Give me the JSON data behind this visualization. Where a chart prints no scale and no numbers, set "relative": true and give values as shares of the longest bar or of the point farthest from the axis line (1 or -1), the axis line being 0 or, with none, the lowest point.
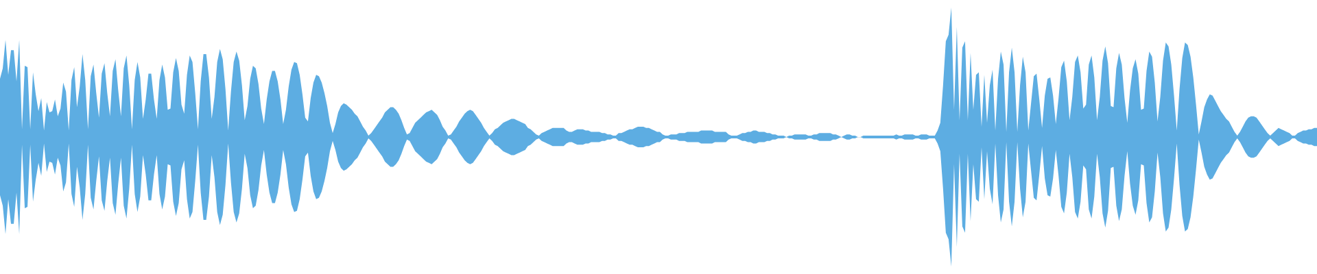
{
  "chart_data": {
    "type": "area",
    "relative": true,
    "categories": [
      null,
      null,
      null,
      null,
      null,
      null,
      null,
      null,
      null,
      null,
      null,
      null,
      null,
      null,
      null,
      null,
      null,
      null,
      null,
      null,
      null,
      null,
      null,
      null,
      null,
      null,
      null,
      null,
      null,
      null,
      null,
      null,
      null,
      null,
      null,
      null,
      null,
      null,
      null,
      null,
      null,
      null,
      null,
      null,
      null,
      null,
      null,
      null,
      null,
      null,
      null,
      null,
      null,
      null,
      null,
      null,
      null,
      null,
      null,
      null,
      null,
      null,
      null,
      null,
      null,
      null,
      null,
      null,
      null,
      null,
      null,
      null,
      null,
      null,
      null,
      null,
      null,
      null,
      null,
      null,
      null,
      null,
      null,
      null,
      null,
      null,
      null,
      null,
      null,
      null,
      null,
      null,
      null,
      null,
      null,
      null,
      null,
      null,
      null,
      null,
      null,
      null,
      null,
      null,
      null,
      null,
      null,
      null,
      null,
      null,
      null,
      null,
      null,
      null,
      null,
      null,
      null,
      null,
      null,
      null,
      null,
      null,
      null,
      null,
      null,
      null,
      null,
      null,
      null,
      null,
      null,
      null,
      null,
      null,
      null,
      null,
      null,
      null,
      null,
      null,
      null,
      null,
      null,
      null,
      null,
      null,
      null,
      null,
      null,
      null,
      null,
      null,
      null,
      null,
      null,
      null,
      null,
      null,
      null,
      null,
      null,
      null,
      null,
      null,
      null,
      null,
      null,
      null,
      null,
      null,
      null,
      null,
      null,
      null,
      null,
      null,
      null,
      null,
      null,
      null,
      null,
      null,
      null,
      null,
      null,
      null,
      null,
      null,
      null,
      null,
      null,
      null,
      null,
      null,
      null,
      null,
      null,
      null,
      null,
      null,
      null,
      null,
      null,
      null,
      null,
      null,
      null,
      null,
      null,
      null,
      null,
      null,
      null,
      null,
      null,
      null,
      null,
      null,
      null,
      null,
      null,
      null,
      null,
      null,
      null,
      null,
      null,
      null,
      null,
      null,
      null,
      null,
      null,
      null,
      null,
      null,
      null,
      null,
      null,
      null,
      null,
      null,
      null,
      null,
      null,
      null,
      null,
      null,
      null,
      null,
      null,
      null,
      null,
      null,
      null,
      null,
      null,
      null,
      null,
      null,
      null,
      null,
      null,
      null,
      null,
      null,
      null,
      null,
      null,
      null,
      null,
      null,
      null,
      null,
      null,
      null,
      null,
      null,
      null,
      null,
      null,
      null,
      null,
      null,
      null,
      null,
      null,
      null,
      null,
      null,
      null,
      null,
      null,
      null,
      null,
      null,
      null,
      null,
      null,
      null,
      null,
      null,
      null,
      null,
      null,
      null,
      null,
      null,
      null,
      null,
      null,
      null,
      null,
      null,
      null,
      null,
      null,
      null,
      null,
      null,
      null,
      null,
      null,
      null,
      null,
      null,
      null,
      null,
      null,
      null,
      null,
      null,
      null,
      null,
      null,
      null,
      null,
      null,
      null,
      null,
      null,
      null,
      null,
      null,
      null,
      null,
      null,
      null,
      null,
      null,
      null,
      null,
      null,
      null,
      null,
      null,
      null,
      null,
      null,
      null,
      null,
      null,
      null,
      null,
      null,
      null,
      null,
      null,
      null,
      null,
      null,
      null,
      null,
      null,
      null,
      null,
      null,
      null,
      null,
      null,
      null,
      null,
      null,
      null,
      null,
      null,
      null,
      null,
      null,
      null,
      null,
      null,
      null,
      null,
      null,
      null,
      null,
      null,
      null,
      null,
      null,
      null,
      null,
      null,
      null,
      null,
      null,
      null,
      null,
      null,
      null,
      null,
      null,
      null,
      null,
      null,
      null,
      null,
      null,
      null,
      null,
      null,
      null,
      null,
      null,
      null,
      null,
      null,
      null,
      null,
      null,
      null,
      null,
      null,
      null,
      null,
      null,
      null,
      null,
      null,
      null,
      null,
      null,
      null,
      null,
      null,
      null,
      null,
      null,
      null,
      null,
      null,
      null,
      null,
      null,
      null,
      null,
      null,
      null,
      null,
      null,
      null,
      null,
      null,
      null,
      null,
      null,
      null,
      null,
      null,
      null,
      null,
      null,
      null,
      null,
      null,
      null,
      null,
      null,
      null
    ],
    "series": [
      {
        "color": "#5dade2",
        "values": [
          0.45,
          0.53,
          0.75,
          0.48,
          0.67,
          0.67,
          0.43,
          0.75,
          0.06,
          0.55,
          0.54,
          0.06,
          0.5,
          0.33,
          0.2,
          0.3,
          0.05,
          0.27,
          0.19,
          0.2,
          0.29,
          0.16,
          0.22,
          0.42,
          0.35,
          0.05,
          0.44,
          0.54,
          0.23,
          0.39,
          0.64,
          0.44,
          0.06,
          0.47,
          0.56,
          0.34,
          0.15,
          0.49,
          0.57,
          0.34,
          0.16,
          0.51,
          0.6,
          0.36,
          0.16,
          0.53,
          0.63,
          0.4,
          0.06,
          0.44,
          0.58,
          0.46,
          0.14,
          0.29,
          0.49,
          0.49,
          0.29,
          0.14,
          0.44,
          0.56,
          0.46,
          0.21,
          0.22,
          0.5,
          0.61,
          0.51,
          0.25,
          0.18,
          0.48,
          0.63,
          0.58,
          0.34,
          0.06,
          0.43,
          0.64,
          0.64,
          0.46,
          0.14,
          0.31,
          0.58,
          0.68,
          0.6,
          0.37,
          0.05,
          0.35,
          0.58,
          0.66,
          0.59,
          0.4,
          0.13,
          0.24,
          0.45,
          0.55,
          0.53,
          0.41,
          0.22,
          0.1,
          0.29,
          0.43,
          0.51,
          0.51,
          0.43,
          0.29,
          0.1,
          0.21,
          0.39,
          0.52,
          0.58,
          0.57,
          0.48,
          0.33,
          0.15,
          0.12,
          0.3,
          0.42,
          0.48,
          0.47,
          0.42,
          0.34,
          0.24,
          0.11,
          0.03,
          0.1,
          0.19,
          0.24,
          0.26,
          0.25,
          0.23,
          0.21,
          0.18,
          0.16,
          0.12,
          0.08,
          0.05,
          0.01,
          0.03,
          0.06,
          0.09,
          0.12,
          0.15,
          0.19,
          0.21,
          0.23,
          0.23,
          0.21,
          0.18,
          0.13,
          0.07,
          0.02,
          0.03,
          0.07,
          0.11,
          0.13,
          0.15,
          0.17,
          0.19,
          0.2,
          0.21,
          0.19,
          0.17,
          0.13,
          0.08,
          0.05,
          0.01,
          0.02,
          0.05,
          0.08,
          0.12,
          0.15,
          0.18,
          0.2,
          0.21,
          0.2,
          0.17,
          0.14,
          0.11,
          0.07,
          0.04,
          0.01,
          0.03,
          0.06,
          0.07,
          0.09,
          0.11,
          0.12,
          0.13,
          0.14,
          0.14,
          0.13,
          0.12,
          0.11,
          0.1,
          0.07,
          0.06,
          0.04,
          0.02,
          0.01,
          0.03,
          0.04,
          0.05,
          0.06,
          0.07,
          0.07,
          0.07,
          0.07,
          0.07,
          0.05,
          0.04,
          0.04,
          0.05,
          0.06,
          0.06,
          0.06,
          0.05,
          0.05,
          0.04,
          0.04,
          0.04,
          0.04,
          0.03,
          0.03,
          0.02,
          0.02,
          0.01,
          0.01,
          0.03,
          0.03,
          0.04,
          0.05,
          0.06,
          0.06,
          0.07,
          0.08,
          0.08,
          0.08,
          0.07,
          0.07,
          0.06,
          0.05,
          0.04,
          0.04,
          0.02,
          0.01,
          0.01,
          0.02,
          0.02,
          0.02,
          0.03,
          0.03,
          0.03,
          0.04,
          0.04,
          0.04,
          0.04,
          0.04,
          0.05,
          0.05,
          0.05,
          0.05,
          0.05,
          0.04,
          0.04,
          0.04,
          0.04,
          0.04,
          0.02,
          0.01,
          0.01,
          0.01,
          0.02,
          0.03,
          0.03,
          0.04,
          0.04,
          0.05,
          0.05,
          0.04,
          0.04,
          0.04,
          0.03,
          0.03,
          0.02,
          0.02,
          0.01,
          0.01,
          0.01,
          0,
          0.01,
          0.01,
          0.02,
          0.02,
          0.02,
          0.02,
          0.02,
          0.01,
          0.01,
          0.02,
          0.02,
          0.03,
          0.03,
          0.03,
          0.03,
          0.03,
          0.02,
          0.02,
          0.01,
          0,
          0.01,
          0.02,
          0.02,
          0.01,
          0.01,
          0,
          0,
          0.01,
          0.01,
          0.01,
          0.01,
          0.01,
          0.01,
          0.01,
          0.01,
          0.01,
          0.01,
          0.01,
          0.01,
          0.02,
          0.01,
          0.01,
          0.02,
          0.02,
          0.02,
          0.02,
          0.01,
          0.01,
          0.02,
          0.02,
          0.02,
          0.01,
          0.01,
          0.01,
          0.05,
          0.11,
          0.4,
          0.74,
          0.79,
          1,
          0.21,
          0.85,
          0.13,
          0.69,
          0.74,
          0.13,
          0.65,
          0.21,
          0.48,
          0.5,
          0.08,
          0.48,
          0.11,
          0.4,
          0.52,
          0.05,
          0.45,
          0.66,
          0.56,
          0.04,
          0.5,
          0.69,
          0.5,
          0.04,
          0.4,
          0.62,
          0.5,
          0.05,
          0.26,
          0.47,
          0.49,
          0.29,
          0.07,
          0.32,
          0.45,
          0.46,
          0.32,
          0.1,
          0.3,
          0.54,
          0.59,
          0.43,
          0.13,
          0.31,
          0.58,
          0.63,
          0.5,
          0.22,
          0.25,
          0.56,
          0.63,
          0.46,
          0.13,
          0.31,
          0.59,
          0.7,
          0.57,
          0.24,
          0.23,
          0.53,
          0.65,
          0.56,
          0.3,
          0.11,
          0.36,
          0.53,
          0.6,
          0.49,
          0.21,
          0.22,
          0.51,
          0.66,
          0.62,
          0.42,
          0.12,
          0.31,
          0.59,
          0.73,
          0.7,
          0.56,
          0.32,
          0.05,
          0.37,
          0.61,
          0.73,
          0.71,
          0.62,
          0.46,
          0.25,
          0.02,
          0.12,
          0.23,
          0.29,
          0.33,
          0.32,
          0.28,
          0.24,
          0.2,
          0.17,
          0.14,
          0.12,
          0.08,
          0.04,
          0.01,
          0.04,
          0.08,
          0.12,
          0.15,
          0.16,
          0.16,
          0.15,
          0.12,
          0.09,
          0.06,
          0.03,
          0.01,
          0.03,
          0.05,
          0.07,
          0.06,
          0.05,
          0.04,
          0.03,
          0.01,
          0.01,
          0.03,
          0.04,
          0.05,
          0.05,
          0.06,
          0.06,
          0.07,
          0.07
        ]
      },
      {
        "color": "#5dade2",
        "values": [
          -0.45,
          -0.53,
          -0.75,
          -0.48,
          -0.67,
          -0.67,
          -0.43,
          -0.75,
          -0.06,
          -0.55,
          -0.54,
          -0.06,
          -0.5,
          -0.33,
          -0.2,
          -0.3,
          -0.05,
          -0.27,
          -0.19,
          -0.2,
          -0.29,
          -0.16,
          -0.22,
          -0.42,
          -0.35,
          -0.05,
          -0.44,
          -0.54,
          -0.23,
          -0.39,
          -0.64,
          -0.44,
          -0.06,
          -0.47,
          -0.56,
          -0.34,
          -0.15,
          -0.49,
          -0.57,
          -0.34,
          -0.16,
          -0.51,
          -0.6,
          -0.36,
          -0.16,
          -0.53,
          -0.63,
          -0.4,
          -0.06,
          -0.44,
          -0.58,
          -0.46,
          -0.14,
          -0.29,
          -0.49,
          -0.49,
          -0.29,
          -0.14,
          -0.44,
          -0.56,
          -0.46,
          -0.21,
          -0.22,
          -0.5,
          -0.61,
          -0.51,
          -0.25,
          -0.18,
          -0.48,
          -0.63,
          -0.58,
          -0.34,
          -0.06,
          -0.43,
          -0.64,
          -0.64,
          -0.46,
          -0.14,
          -0.31,
          -0.58,
          -0.68,
          -0.6,
          -0.37,
          -0.05,
          -0.35,
          -0.58,
          -0.66,
          -0.59,
          -0.4,
          -0.13,
          -0.24,
          -0.45,
          -0.55,
          -0.53,
          -0.41,
          -0.22,
          -0.1,
          -0.29,
          -0.43,
          -0.51,
          -0.51,
          -0.43,
          -0.29,
          -0.1,
          -0.21,
          -0.39,
          -0.52,
          -0.58,
          -0.57,
          -0.48,
          -0.33,
          -0.15,
          -0.12,
          -0.3,
          -0.42,
          -0.48,
          -0.47,
          -0.42,
          -0.34,
          -0.24,
          -0.11,
          -0.03,
          -0.1,
          -0.19,
          -0.24,
          -0.26,
          -0.25,
          -0.23,
          -0.21,
          -0.18,
          -0.16,
          -0.12,
          -0.08,
          -0.05,
          -0.01,
          -0.03,
          -0.06,
          -0.09,
          -0.12,
          -0.15,
          -0.19,
          -0.21,
          -0.23,
          -0.23,
          -0.21,
          -0.18,
          -0.13,
          -0.07,
          -0.02,
          -0.03,
          -0.07,
          -0.11,
          -0.13,
          -0.15,
          -0.17,
          -0.19,
          -0.2,
          -0.21,
          -0.19,
          -0.17,
          -0.13,
          -0.08,
          -0.05,
          -0.01,
          -0.02,
          -0.05,
          -0.08,
          -0.12,
          -0.15,
          -0.18,
          -0.2,
          -0.21,
          -0.2,
          -0.17,
          -0.14,
          -0.11,
          -0.07,
          -0.04,
          -0.01,
          -0.03,
          -0.06,
          -0.07,
          -0.09,
          -0.11,
          -0.12,
          -0.13,
          -0.14,
          -0.14,
          -0.13,
          -0.12,
          -0.11,
          -0.1,
          -0.07,
          -0.06,
          -0.04,
          -0.02,
          -0.01,
          -0.03,
          -0.04,
          -0.05,
          -0.06,
          -0.07,
          -0.07,
          -0.07,
          -0.07,
          -0.07,
          -0.05,
          -0.04,
          -0.04,
          -0.05,
          -0.06,
          -0.06,
          -0.06,
          -0.05,
          -0.05,
          -0.04,
          -0.04,
          -0.04,
          -0.04,
          -0.03,
          -0.03,
          -0.02,
          -0.02,
          -0.01,
          -0.01,
          -0.03,
          -0.03,
          -0.04,
          -0.05,
          -0.06,
          -0.06,
          -0.07,
          -0.08,
          -0.08,
          -0.08,
          -0.07,
          -0.07,
          -0.06,
          -0.05,
          -0.04,
          -0.04,
          -0.02,
          -0.01,
          -0.01,
          -0.02,
          -0.02,
          -0.02,
          -0.03,
          -0.03,
          -0.03,
          -0.04,
          -0.04,
          -0.04,
          -0.04,
          -0.04,
          -0.05,
          -0.05,
          -0.05,
          -0.05,
          -0.05,
          -0.04,
          -0.04,
          -0.04,
          -0.04,
          -0.04,
          -0.02,
          -0.01,
          -0.01,
          -0.01,
          -0.02,
          -0.03,
          -0.03,
          -0.04,
          -0.04,
          -0.05,
          -0.05,
          -0.04,
          -0.04,
          -0.04,
          -0.03,
          -0.03,
          -0.02,
          -0.02,
          -0.01,
          -0.01,
          -0.01,
          0,
          -0.01,
          -0.01,
          -0.02,
          -0.02,
          -0.02,
          -0.02,
          -0.02,
          -0.01,
          -0.01,
          -0.02,
          -0.02,
          -0.03,
          -0.03,
          -0.03,
          -0.03,
          -0.03,
          -0.02,
          -0.02,
          -0.01,
          0,
          -0.01,
          -0.02,
          -0.02,
          -0.01,
          -0.01,
          0,
          0,
          -0.01,
          -0.01,
          -0.01,
          -0.01,
          -0.01,
          -0.01,
          -0.01,
          -0.01,
          -0.01,
          -0.01,
          -0.01,
          -0.01,
          -0.02,
          -0.01,
          -0.01,
          -0.02,
          -0.02,
          -0.02,
          -0.02,
          -0.01,
          -0.01,
          -0.02,
          -0.02,
          -0.02,
          -0.01,
          -0.01,
          -0.01,
          -0.05,
          -0.11,
          -0.4,
          -0.74,
          -0.79,
          -1,
          -0.21,
          -0.85,
          -0.13,
          -0.69,
          -0.74,
          -0.13,
          -0.65,
          -0.21,
          -0.48,
          -0.5,
          -0.08,
          -0.48,
          -0.11,
          -0.4,
          -0.52,
          -0.05,
          -0.45,
          -0.66,
          -0.56,
          -0.04,
          -0.5,
          -0.69,
          -0.5,
          -0.04,
          -0.4,
          -0.62,
          -0.5,
          -0.05,
          -0.26,
          -0.47,
          -0.49,
          -0.29,
          -0.07,
          -0.32,
          -0.45,
          -0.46,
          -0.32,
          -0.1,
          -0.3,
          -0.54,
          -0.59,
          -0.43,
          -0.13,
          -0.31,
          -0.58,
          -0.63,
          -0.5,
          -0.22,
          -0.25,
          -0.56,
          -0.63,
          -0.46,
          -0.13,
          -0.31,
          -0.59,
          -0.7,
          -0.57,
          -0.24,
          -0.23,
          -0.53,
          -0.65,
          -0.56,
          -0.3,
          -0.11,
          -0.36,
          -0.53,
          -0.6,
          -0.49,
          -0.21,
          -0.22,
          -0.51,
          -0.66,
          -0.62,
          -0.42,
          -0.12,
          -0.31,
          -0.59,
          -0.73,
          -0.7,
          -0.56,
          -0.32,
          -0.05,
          -0.37,
          -0.61,
          -0.73,
          -0.71,
          -0.62,
          -0.46,
          -0.25,
          -0.02,
          -0.12,
          -0.23,
          -0.29,
          -0.33,
          -0.32,
          -0.28,
          -0.24,
          -0.2,
          -0.17,
          -0.14,
          -0.12,
          -0.08,
          -0.04,
          -0.01,
          -0.04,
          -0.08,
          -0.12,
          -0.15,
          -0.16,
          -0.16,
          -0.15,
          -0.12,
          -0.09,
          -0.06,
          -0.03,
          -0.01,
          -0.03,
          -0.05,
          -0.07,
          -0.06,
          -0.05,
          -0.04,
          -0.03,
          -0.01,
          -0.01,
          -0.03,
          -0.04,
          -0.05,
          -0.05,
          -0.06,
          -0.06,
          -0.07,
          -0.07
        ]
      }
    ]
  }
}
